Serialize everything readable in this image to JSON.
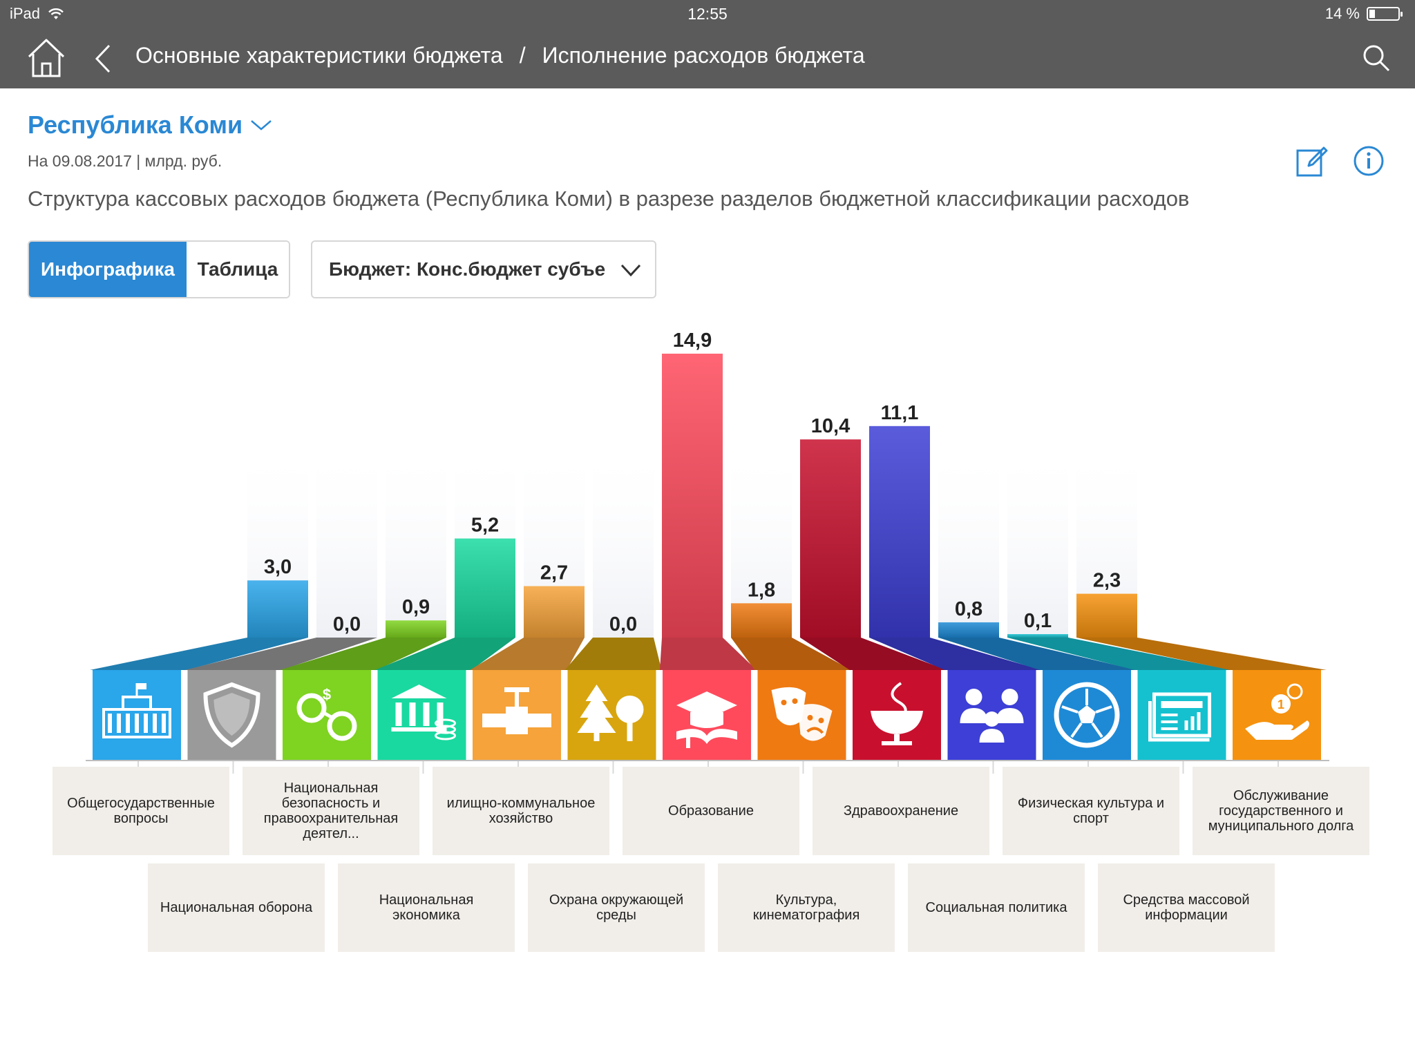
{
  "status": {
    "device": "iPad",
    "time": "12:55",
    "battery": "14 %"
  },
  "nav": {
    "crumb1": "Основные характеристики бюджета",
    "separator": "/",
    "crumb2": "Исполнение расходов бюджета"
  },
  "header": {
    "region": "Республика Коми",
    "date_units": "На 09.08.2017 | млрд. руб.",
    "description": "Структура кассовых расходов бюджета (Республика Коми) в разрезе разделов бюджетной классификации расходов"
  },
  "controls": {
    "tab_infographic": "Инфографика",
    "tab_table": "Таблица",
    "budget_select": "Бюджет: Конс.бюджет субъе"
  },
  "chart_data": {
    "type": "bar",
    "categories": [
      "Общегосударственные вопросы",
      "Национальная оборона",
      "Национальная безопасность и правоохранительная деятел...",
      "Национальная экономика",
      "илищно-коммунальное хозяйство",
      "Охрана окружающей среды",
      "Образование",
      "Культура, кинематография",
      "Здравоохранение",
      "Социальная политика",
      "Физическая культура и спорт",
      "Средства массовой информации",
      "Обслуживание государственного и муниципального долга"
    ],
    "values": [
      3.0,
      0.0,
      0.9,
      5.2,
      2.7,
      0.0,
      14.9,
      1.8,
      10.4,
      11.1,
      0.8,
      0.1,
      2.3
    ],
    "value_labels": [
      "3,0",
      "0,0",
      "0,9",
      "5,2",
      "2,7",
      "0,0",
      "14,9",
      "1,8",
      "10,4",
      "11,1",
      "0,8",
      "0,1",
      "2,3"
    ],
    "colors": [
      "#2aa6ea",
      "#9a9a9a",
      "#7fd321",
      "#19d9a0",
      "#f5a33a",
      "#d8a50e",
      "#ff4a5c",
      "#ef7a12",
      "#c8102e",
      "#3d3fd6",
      "#1e8ad6",
      "#16c1cf",
      "#f5920f"
    ],
    "icons": [
      "government-building-icon",
      "shield-icon",
      "handcuffs-icon",
      "bank-coins-icon",
      "pipe-valve-icon",
      "trees-icon",
      "graduation-book-icon",
      "theater-masks-icon",
      "medical-bowl-icon",
      "family-icon",
      "soccer-ball-icon",
      "newspaper-icon",
      "hand-coins-icon"
    ],
    "ylim": [
      0,
      14.9
    ]
  }
}
